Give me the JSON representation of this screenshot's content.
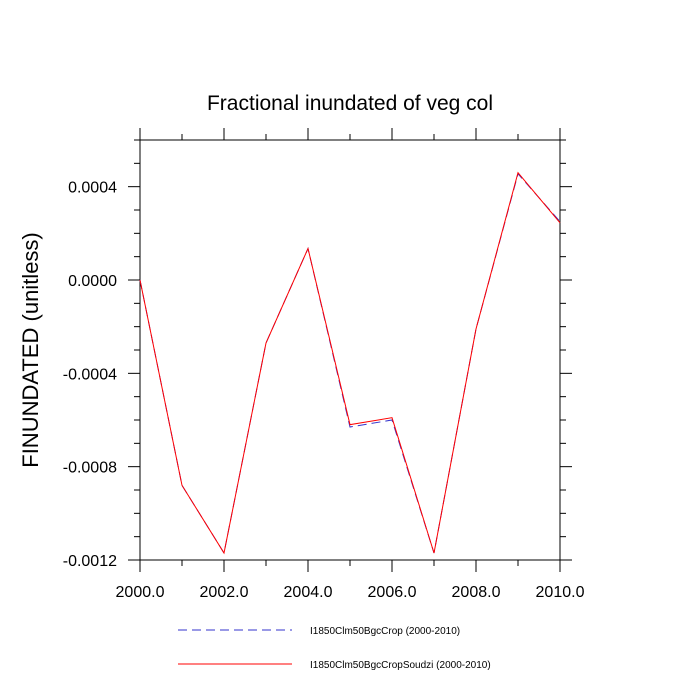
{
  "chart_data": {
    "type": "line",
    "title": "Fractional inundated of veg col",
    "xlabel": "",
    "ylabel": "FINUNDATED  (unitless)",
    "xlim": [
      2000,
      2010
    ],
    "ylim": [
      -0.0012,
      0.0006
    ],
    "x_ticks": [
      2000,
      2002,
      2004,
      2006,
      2008,
      2010
    ],
    "x_tick_labels": [
      "2000.0",
      "2002.0",
      "2004.0",
      "2006.0",
      "2008.0",
      "2010.0"
    ],
    "y_ticks": [
      0.0004,
      0.0,
      -0.0004,
      -0.0008,
      -0.0012
    ],
    "y_tick_labels": [
      "0.0004",
      "0.0000",
      "-0.0004",
      "-0.0008",
      "-0.0012"
    ],
    "grid": false,
    "legend_position": "bottom",
    "x": [
      2000,
      2001,
      2002,
      2003,
      2004,
      2005,
      2006,
      2007,
      2008,
      2009,
      2010
    ],
    "series": [
      {
        "name": "I1850Clm50BgcCrop (2000-2010)",
        "color": "#3333cc",
        "style": "dashed",
        "values": [
          0.0,
          -0.00088,
          -0.00117,
          -0.00027,
          0.000135,
          -0.00063,
          -0.0006,
          -0.00117,
          -0.00021,
          0.000455,
          0.00025
        ]
      },
      {
        "name": "I1850Clm50BgcCropSoudzi (2000-2010)",
        "color": "#ff0000",
        "style": "solid",
        "values": [
          0.0,
          -0.00088,
          -0.00117,
          -0.00027,
          0.000135,
          -0.00062,
          -0.00059,
          -0.00117,
          -0.00021,
          0.00046,
          0.000245
        ]
      }
    ]
  }
}
